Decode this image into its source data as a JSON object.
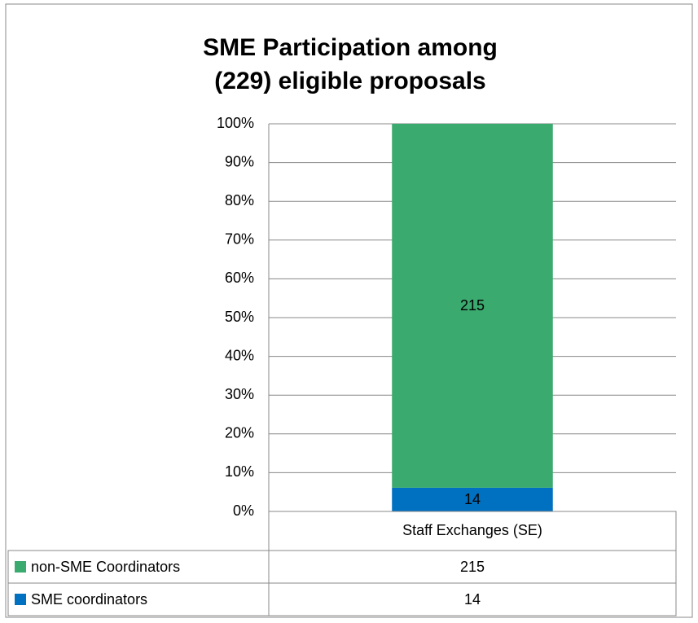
{
  "chart_data": {
    "type": "bar",
    "stacking": "percent",
    "title": [
      "SME Participation among",
      "(229) eligible proposals"
    ],
    "categories": [
      "Staff Exchanges (SE)"
    ],
    "series": [
      {
        "name": "SME coordinators",
        "color": "#0070c0",
        "values": [
          14
        ]
      },
      {
        "name": "non-SME Coordinators",
        "color": "#3aaa6e",
        "values": [
          215
        ]
      }
    ],
    "ylim": [
      0,
      100
    ],
    "yticks": [
      {
        "value": 0,
        "label": "0%"
      },
      {
        "value": 10,
        "label": "10%"
      },
      {
        "value": 20,
        "label": "20%"
      },
      {
        "value": 30,
        "label": "30%"
      },
      {
        "value": 40,
        "label": "40%"
      },
      {
        "value": 50,
        "label": "50%"
      },
      {
        "value": 60,
        "label": "60%"
      },
      {
        "value": 70,
        "label": "70%"
      },
      {
        "value": 80,
        "label": "80%"
      },
      {
        "value": 90,
        "label": "90%"
      },
      {
        "value": 100,
        "label": "100%"
      }
    ],
    "grid": true,
    "data_table": true
  }
}
